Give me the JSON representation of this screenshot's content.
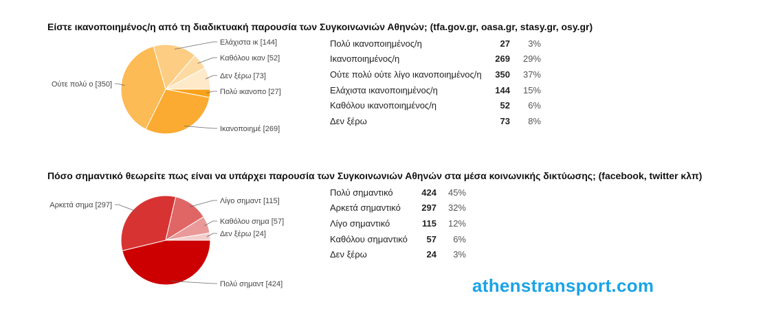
{
  "chart_data": [
    {
      "type": "pie",
      "title": "Είστε ικανοποιημένος/η από τη διαδικτυακή παρουσία των Συγκοινωνιών Αθηνών; (tfa.gov.gr, oasa.gr, stasy.gr, osy.gr)",
      "slices": [
        {
          "label": "Πολύ ικανοποιημένος/η",
          "short_label": "Πολύ ικανοπο [27]",
          "value": 27,
          "percent": "3%",
          "color": "#f9a11b"
        },
        {
          "label": "Ικανοποιημένος/η",
          "short_label": "Ικανοποιημέ [269]",
          "value": 269,
          "percent": "29%",
          "color": "#fbab31"
        },
        {
          "label": "Ούτε πολύ ούτε λίγο ικανοποιημένος/η",
          "short_label": "Ούτε πολύ ο [350]",
          "value": 350,
          "percent": "37%",
          "color": "#fdbb55"
        },
        {
          "label": "Ελάχιστα ικανοποιημένος/η",
          "short_label": "Ελάχιστα ικ [144]",
          "value": 144,
          "percent": "15%",
          "color": "#fdcd84"
        },
        {
          "label": "Καθόλου ικανοποιημένος/η",
          "short_label": "Καθόλου ικαν [52]",
          "value": 52,
          "percent": "6%",
          "color": "#fedaa3"
        },
        {
          "label": "Δεν ξέρω",
          "short_label": "Δεν ξέρω [73]",
          "value": 73,
          "percent": "8%",
          "color": "#fee9c9"
        }
      ]
    },
    {
      "type": "pie",
      "title": "Πόσο σημαντικό θεωρείτε πως είναι να υπάρχει παρουσία των Συγκοινωνιών Αθηνών στα μέσα κοινωνικής δικτύωσης; (facebook, twitter κλπ)",
      "slices": [
        {
          "label": "Πολύ σημαντικό",
          "short_label": "Πολύ σημαντ [424]",
          "value": 424,
          "percent": "45%",
          "color": "#cc0000"
        },
        {
          "label": "Αρκετά σημαντικό",
          "short_label": "Αρκετά σημα [297]",
          "value": 297,
          "percent": "32%",
          "color": "#d83333"
        },
        {
          "label": "Λίγο σημαντικό",
          "short_label": "Λίγο σημαντ [115]",
          "value": 115,
          "percent": "12%",
          "color": "#e06666"
        },
        {
          "label": "Καθόλου σημαντικό",
          "short_label": "Καθόλου σημα [57]",
          "value": 57,
          "percent": "6%",
          "color": "#ea9999"
        },
        {
          "label": "Δεν ξέρω",
          "short_label": "Δεν ξέρω [24]",
          "value": 24,
          "percent": "3%",
          "color": "#f4cccc"
        }
      ]
    }
  ],
  "brand": {
    "text": "athenstransport.com"
  }
}
